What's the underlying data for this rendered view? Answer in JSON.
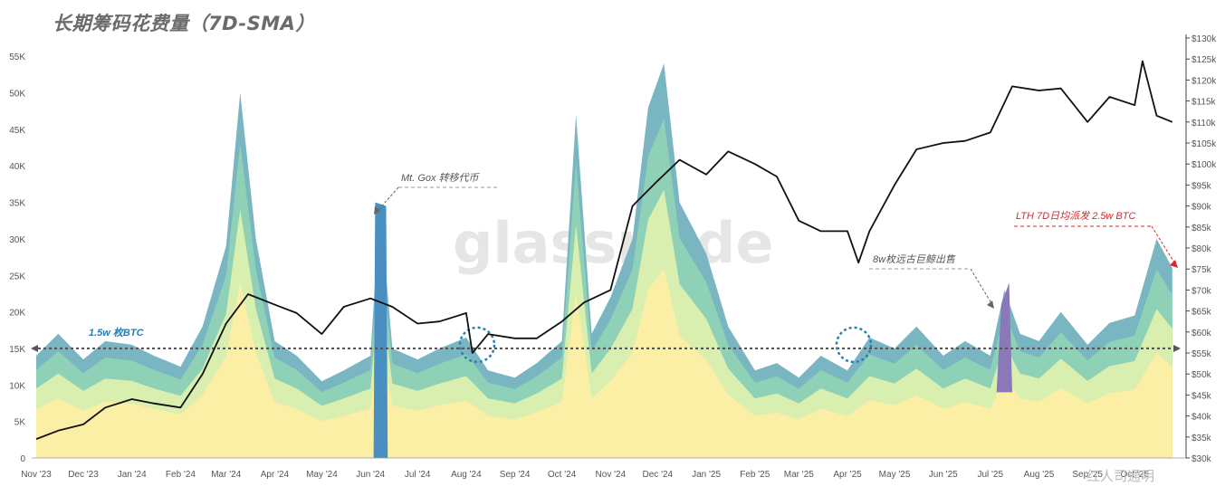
{
  "title": "长期筹码花费量（7D-SMA）",
  "watermark": "glassnode",
  "corner_watermark": "红人司通明",
  "colors": {
    "btc_line": "#111111",
    "reference_line": "#555555",
    "mtgox": "#4a8fc2",
    "whale": "#8a78b8",
    "band_outer": "#7ab6c2",
    "band_2": "#8fd1b6",
    "band_3": "#d9efb0",
    "band_inner": "#fbeea5",
    "red_annotation": "#d62a2a",
    "blue_annotation": "#2b7fae"
  },
  "chart_data": {
    "type": "area",
    "title": "长期筹码花费量（7D-SMA）",
    "x_ticks": [
      "Nov '23",
      "Dec '23",
      "Jan '24",
      "Feb '24",
      "Mar '24",
      "Apr '24",
      "May '24",
      "Jun '24",
      "Jul '24",
      "Aug '24",
      "Sep '24",
      "Oct '24",
      "Nov '24",
      "Dec '24",
      "Jan '25",
      "Feb '25",
      "Mar '25",
      "Apr '25",
      "May '25",
      "Jun '25",
      "Jul '25",
      "Aug '25",
      "Sep '25",
      "Oct '25"
    ],
    "y_left": {
      "ticks": [
        "0",
        "5K",
        "10K",
        "15K",
        "20K",
        "25K",
        "30K",
        "35K",
        "40K",
        "45K",
        "50K",
        "55K"
      ],
      "range": [
        0,
        57500
      ]
    },
    "y_right": {
      "ticks": [
        "$30k",
        "$35k",
        "$40k",
        "$45k",
        "$50k",
        "$55k",
        "$60k",
        "$65k",
        "$70k",
        "$75k",
        "$80k",
        "$85k",
        "$90k",
        "$95k",
        "$100k",
        "$105k",
        "$110k",
        "$115k",
        "$120k",
        "$125k",
        "$130k"
      ],
      "range": [
        30000,
        130000
      ]
    },
    "spent_series": {
      "x": [
        "2023-11-01",
        "2023-11-15",
        "2023-12-01",
        "2023-12-15",
        "2024-01-01",
        "2024-01-15",
        "2024-02-01",
        "2024-02-15",
        "2024-03-01",
        "2024-03-10",
        "2024-03-20",
        "2024-04-01",
        "2024-04-15",
        "2024-05-01",
        "2024-05-15",
        "2024-06-01",
        "2024-06-07",
        "2024-06-15",
        "2024-07-01",
        "2024-07-15",
        "2024-08-01",
        "2024-08-15",
        "2024-09-01",
        "2024-09-15",
        "2024-10-01",
        "2024-10-10",
        "2024-10-20",
        "2024-11-01",
        "2024-11-15",
        "2024-11-25",
        "2024-12-05",
        "2024-12-15",
        "2025-01-01",
        "2025-01-15",
        "2025-02-01",
        "2025-02-15",
        "2025-03-01",
        "2025-03-15",
        "2025-04-01",
        "2025-04-15",
        "2025-05-01",
        "2025-05-15",
        "2025-06-01",
        "2025-06-15",
        "2025-07-01",
        "2025-07-10",
        "2025-07-20",
        "2025-08-01",
        "2025-08-15",
        "2025-09-01",
        "2025-09-15",
        "2025-10-01",
        "2025-10-15",
        "2025-10-25"
      ],
      "total": [
        14000,
        17000,
        13500,
        16000,
        15500,
        14000,
        12500,
        18000,
        29000,
        50000,
        30000,
        16000,
        14000,
        10500,
        12000,
        14000,
        35000,
        15000,
        13500,
        15000,
        16500,
        12000,
        11000,
        13000,
        16000,
        47000,
        17000,
        22000,
        30000,
        48000,
        54000,
        35000,
        28000,
        18000,
        12000,
        13000,
        11000,
        14000,
        12000,
        16500,
        15000,
        18000,
        14000,
        16000,
        14000,
        23000,
        17000,
        16000,
        20000,
        15500,
        18500,
        19500,
        30000,
        26000
      ]
    },
    "btc_price": {
      "x": [
        "2023-11-01",
        "2023-11-15",
        "2023-12-01",
        "2023-12-15",
        "2024-01-01",
        "2024-01-15",
        "2024-02-01",
        "2024-02-15",
        "2024-03-01",
        "2024-03-15",
        "2024-04-01",
        "2024-04-15",
        "2024-05-01",
        "2024-05-15",
        "2024-06-01",
        "2024-06-15",
        "2024-07-01",
        "2024-07-15",
        "2024-08-01",
        "2024-08-05",
        "2024-08-15",
        "2024-09-01",
        "2024-09-15",
        "2024-10-01",
        "2024-10-15",
        "2024-11-01",
        "2024-11-15",
        "2024-12-01",
        "2024-12-15",
        "2025-01-01",
        "2025-01-15",
        "2025-02-01",
        "2025-02-15",
        "2025-03-01",
        "2025-03-15",
        "2025-04-01",
        "2025-04-08",
        "2025-04-15",
        "2025-05-01",
        "2025-05-15",
        "2025-06-01",
        "2025-06-15",
        "2025-07-01",
        "2025-07-15",
        "2025-08-01",
        "2025-08-15",
        "2025-09-01",
        "2025-09-15",
        "2025-10-01",
        "2025-10-06",
        "2025-10-15",
        "2025-10-25"
      ],
      "y": [
        34500,
        36500,
        38000,
        42000,
        44000,
        43000,
        42000,
        50000,
        62000,
        69000,
        66500,
        64500,
        59500,
        66000,
        68000,
        66000,
        62000,
        62500,
        64500,
        55000,
        59500,
        58500,
        58500,
        62500,
        67000,
        70000,
        90000,
        96000,
        101000,
        97500,
        103000,
        100000,
        97000,
        86500,
        84000,
        84000,
        76500,
        84000,
        95000,
        103500,
        105000,
        105500,
        107500,
        118500,
        117500,
        118000,
        110000,
        116000,
        114000,
        124500,
        111500,
        110000
      ]
    },
    "reference": {
      "label": "1.5w 枚BTC",
      "value": 15000
    },
    "annotations": [
      "Mt. Gox 转移代币",
      "8w枚远古巨鲸出售",
      "LTH 7D日均派发 2.5w BTC"
    ]
  }
}
